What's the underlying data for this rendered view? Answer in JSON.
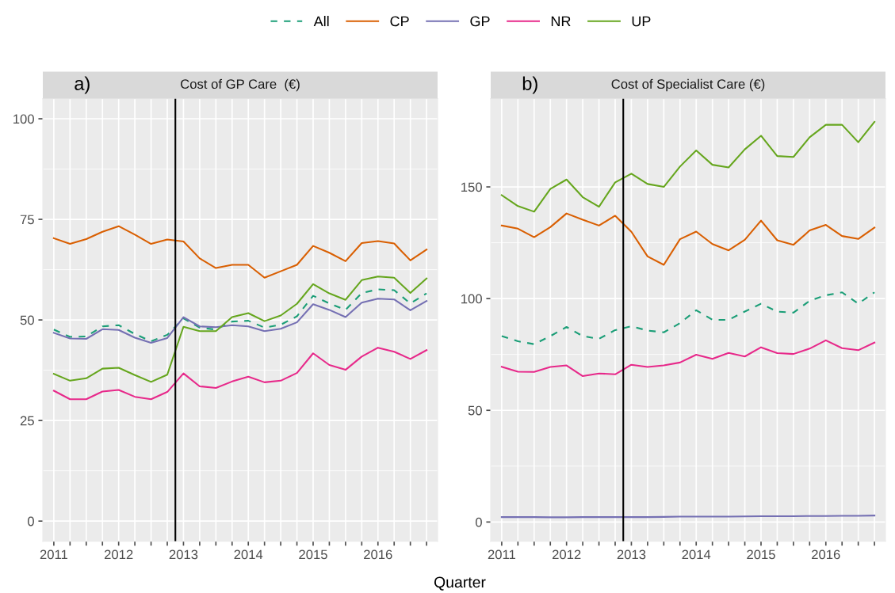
{
  "chart_data": [
    {
      "type": "line",
      "title": "Cost of GP Care  (€)",
      "annotations": [
        "a)"
      ],
      "xlabel": "Quarter",
      "x": [
        2011.0,
        2011.25,
        2011.5,
        2011.75,
        2012.0,
        2012.25,
        2012.5,
        2012.75,
        2013.0,
        2013.25,
        2013.5,
        2013.75,
        2014.0,
        2014.25,
        2014.5,
        2014.75,
        2015.0,
        2015.25,
        2015.5,
        2015.75,
        2016.0,
        2016.25,
        2016.5,
        2016.75
      ],
      "xlim": [
        2010.83,
        2016.92
      ],
      "xticks": [
        2011,
        {
          "value": 2011.25,
          "label": null
        },
        {
          "value": 2011.5,
          "label": null
        },
        {
          "value": 2011.75,
          "label": null
        },
        2012,
        {
          "value": 2012.25,
          "label": null
        },
        {
          "value": 2012.5,
          "label": null
        },
        {
          "value": 2012.75,
          "label": null
        },
        2013,
        {
          "value": 2013.25,
          "label": null
        },
        {
          "value": 2013.5,
          "label": null
        },
        {
          "value": 2013.75,
          "label": null
        },
        2014,
        {
          "value": 2014.25,
          "label": null
        },
        {
          "value": 2014.5,
          "label": null
        },
        {
          "value": 2014.75,
          "label": null
        },
        2015,
        {
          "value": 2015.25,
          "label": null
        },
        {
          "value": 2015.5,
          "label": null
        },
        {
          "value": 2015.75,
          "label": null
        },
        2016,
        {
          "value": 2016.25,
          "label": null
        },
        {
          "value": 2016.5,
          "label": null
        },
        {
          "value": 2016.75,
          "label": null
        }
      ],
      "ylim": [
        -5,
        105
      ],
      "yticks": [
        0,
        25,
        50,
        75,
        100
      ],
      "grid": true,
      "legend": "top",
      "ref_lines": [
        {
          "axis": "x",
          "value": 2012.875,
          "label": null,
          "color": "#000000"
        }
      ],
      "series": [
        {
          "name": "All",
          "color": "#1b9e77",
          "line_style": "dashed",
          "values": [
            47.6,
            45.8,
            45.9,
            48.4,
            48.7,
            46.5,
            44.7,
            46.3,
            50.4,
            48.1,
            47.6,
            49.6,
            49.8,
            48.1,
            48.8,
            50.9,
            56.0,
            54.1,
            52.5,
            56.7,
            57.6,
            57.4,
            54.1,
            56.6
          ]
        },
        {
          "name": "CP",
          "color": "#d95f02",
          "line_style": "solid",
          "values": [
            70.3,
            68.9,
            70.1,
            71.9,
            73.3,
            71.2,
            68.9,
            70.0,
            69.5,
            65.3,
            62.9,
            63.7,
            63.7,
            60.5,
            62.1,
            63.7,
            68.4,
            66.7,
            64.6,
            69.1,
            69.6,
            69.0,
            64.8,
            67.5
          ]
        },
        {
          "name": "GP",
          "color": "#7570b3",
          "line_style": "solid",
          "values": [
            46.8,
            45.4,
            45.3,
            47.7,
            47.5,
            45.6,
            44.3,
            45.5,
            50.7,
            48.4,
            48.2,
            48.7,
            48.4,
            47.2,
            47.8,
            49.4,
            53.9,
            52.5,
            50.7,
            54.3,
            55.3,
            55.1,
            52.4,
            54.7
          ]
        },
        {
          "name": "NR",
          "color": "#e7298a",
          "line_style": "solid",
          "values": [
            32.4,
            30.3,
            30.3,
            32.2,
            32.6,
            30.9,
            30.3,
            32.1,
            36.7,
            33.5,
            33.1,
            34.7,
            35.9,
            34.5,
            34.9,
            36.8,
            41.7,
            38.8,
            37.6,
            40.9,
            43.1,
            42.1,
            40.3,
            42.5
          ]
        },
        {
          "name": "UP",
          "color": "#66a61e",
          "line_style": "solid",
          "values": [
            36.6,
            34.9,
            35.5,
            37.9,
            38.1,
            36.3,
            34.6,
            36.4,
            48.3,
            47.2,
            47.2,
            50.7,
            51.7,
            49.7,
            51.1,
            54.0,
            58.9,
            56.6,
            55.0,
            59.9,
            60.8,
            60.5,
            56.7,
            60.3
          ]
        }
      ]
    },
    {
      "type": "line",
      "title": "Cost of Specialist Care (€)",
      "annotations": [
        "b)"
      ],
      "x": [
        2011.0,
        2011.25,
        2011.5,
        2011.75,
        2012.0,
        2012.25,
        2012.5,
        2012.75,
        2013.0,
        2013.25,
        2013.5,
        2013.75,
        2014.0,
        2014.25,
        2014.5,
        2014.75,
        2015.0,
        2015.25,
        2015.5,
        2015.75,
        2016.0,
        2016.25,
        2016.5,
        2016.75
      ],
      "xlim": [
        2010.83,
        2016.92
      ],
      "xticks": [
        2011,
        {
          "value": 2011.25,
          "label": null
        },
        {
          "value": 2011.5,
          "label": null
        },
        {
          "value": 2011.75,
          "label": null
        },
        2012,
        {
          "value": 2012.25,
          "label": null
        },
        {
          "value": 2012.5,
          "label": null
        },
        {
          "value": 2012.75,
          "label": null
        },
        2013,
        {
          "value": 2013.25,
          "label": null
        },
        {
          "value": 2013.5,
          "label": null
        },
        {
          "value": 2013.75,
          "label": null
        },
        2014,
        {
          "value": 2014.25,
          "label": null
        },
        {
          "value": 2014.5,
          "label": null
        },
        {
          "value": 2014.75,
          "label": null
        },
        2015,
        {
          "value": 2015.25,
          "label": null
        },
        {
          "value": 2015.5,
          "label": null
        },
        {
          "value": 2015.75,
          "label": null
        },
        2016,
        {
          "value": 2016.25,
          "label": null
        },
        {
          "value": 2016.5,
          "label": null
        },
        {
          "value": 2016.75,
          "label": null
        }
      ],
      "ylim": [
        -8.6,
        189.5
      ],
      "yticks": [
        0,
        50,
        100,
        150
      ],
      "grid": true,
      "legend": "top",
      "ref_lines": [
        {
          "axis": "x",
          "value": 2012.875,
          "label": null,
          "color": "#000000"
        }
      ],
      "series": [
        {
          "name": "All",
          "color": "#1b9e77",
          "line_style": "dashed",
          "values": [
            83.2,
            80.9,
            79.6,
            83.2,
            87.3,
            83.2,
            82.0,
            85.9,
            87.6,
            85.7,
            84.9,
            89.0,
            94.8,
            90.5,
            90.5,
            94.2,
            97.7,
            94.2,
            93.7,
            99.0,
            101.5,
            102.8,
            97.7,
            102.8
          ]
        },
        {
          "name": "CP",
          "color": "#d95f02",
          "line_style": "solid",
          "values": [
            132.7,
            131.3,
            127.5,
            132.0,
            138.1,
            135.3,
            132.7,
            137.1,
            129.9,
            118.9,
            115.1,
            126.6,
            130.0,
            124.4,
            121.6,
            126.3,
            134.9,
            126.1,
            124.1,
            130.5,
            133.0,
            128.0,
            126.7,
            131.8
          ]
        },
        {
          "name": "GP",
          "color": "#7570b3",
          "line_style": "solid",
          "values": [
            2.2,
            2.2,
            2.2,
            2.1,
            2.1,
            2.2,
            2.2,
            2.2,
            2.2,
            2.2,
            2.3,
            2.4,
            2.4,
            2.4,
            2.4,
            2.5,
            2.6,
            2.6,
            2.6,
            2.7,
            2.7,
            2.8,
            2.8,
            2.9
          ]
        },
        {
          "name": "NR",
          "color": "#e7298a",
          "line_style": "solid",
          "values": [
            69.5,
            67.3,
            67.2,
            69.4,
            70.1,
            65.3,
            66.5,
            66.1,
            70.4,
            69.4,
            70.1,
            71.4,
            74.9,
            73.0,
            75.7,
            74.1,
            78.2,
            75.6,
            75.2,
            77.6,
            81.3,
            77.8,
            76.9,
            80.3
          ]
        },
        {
          "name": "UP",
          "color": "#66a61e",
          "line_style": "solid",
          "values": [
            146.3,
            141.4,
            138.9,
            149.1,
            153.3,
            145.4,
            141.1,
            152.0,
            155.9,
            151.3,
            150.0,
            159.1,
            166.3,
            159.9,
            158.7,
            166.8,
            172.9,
            163.8,
            163.4,
            172.2,
            177.8,
            177.8,
            170.0,
            179.1
          ]
        }
      ]
    }
  ]
}
